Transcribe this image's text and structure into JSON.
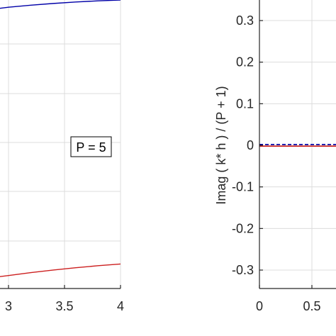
{
  "chart_data": [
    {
      "type": "line",
      "title": "",
      "xlabel": "",
      "ylabel": "",
      "xlim": [
        2.9,
        4.0
      ],
      "ylim": [
        0,
        1
      ],
      "x_ticks": [
        3,
        3.5,
        4
      ],
      "x_tick_labels": [
        "3",
        "3.5",
        "4"
      ],
      "grid": true,
      "annotation": "P = 5",
      "series": [
        {
          "color": "#0000a8",
          "x": [
            2.9,
            3.0,
            3.2,
            3.4,
            3.6,
            3.8,
            4.0
          ],
          "y": [
            0.97,
            0.975,
            0.982,
            0.988,
            0.993,
            0.997,
            1.0
          ]
        },
        {
          "color": "#cc1f1f",
          "x": [
            2.9,
            3.0,
            3.2,
            3.4,
            3.6,
            3.8,
            4.0
          ],
          "y": [
            0.04,
            0.045,
            0.055,
            0.064,
            0.072,
            0.079,
            0.085
          ]
        }
      ]
    },
    {
      "type": "line",
      "title": "",
      "xlabel": "",
      "ylabel": "Imag ( k* h ) / (P + 1)",
      "xlim": [
        0,
        0.95
      ],
      "ylim": [
        -0.35,
        0.35
      ],
      "x_ticks": [
        0,
        0.5
      ],
      "x_tick_labels": [
        "0",
        "0.5"
      ],
      "y_ticks": [
        0.3,
        0.2,
        0.1,
        0,
        -0.1,
        -0.2,
        -0.3
      ],
      "y_tick_labels": [
        "0.3",
        "0.2",
        "0.1",
        "0",
        "-0.1",
        "-0.2",
        "-0.3"
      ],
      "grid": true,
      "series": [
        {
          "color": "#cc1f1f",
          "style": "solid",
          "x": [
            0,
            0.95
          ],
          "y": [
            -0.002,
            -0.002
          ]
        },
        {
          "color": "#0000a8",
          "style": "dashed",
          "x": [
            0,
            0.95
          ],
          "y": [
            0.002,
            0.002
          ]
        }
      ]
    }
  ]
}
